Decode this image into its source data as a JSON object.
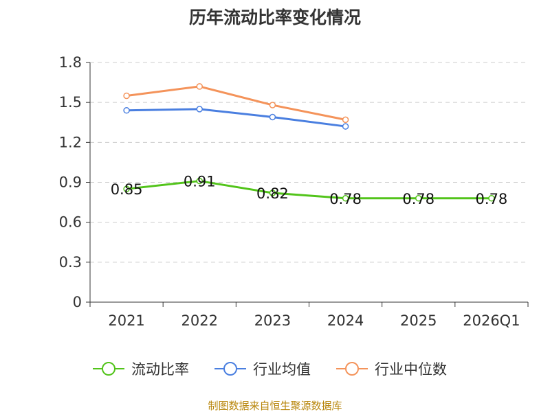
{
  "chart_data": {
    "type": "line",
    "title": "历年流动比率变化情况",
    "categories": [
      "2021",
      "2022",
      "2023",
      "2024",
      "2025",
      "2026Q1"
    ],
    "y_ticks": [
      "0",
      "0.3",
      "0.6",
      "0.9",
      "1.2",
      "1.5",
      "1.8"
    ],
    "ylim": [
      0,
      1.8
    ],
    "grid": true,
    "legend_position": "bottom",
    "series": [
      {
        "name": "流动比率",
        "color": "#52c41a",
        "values": [
          0.85,
          0.91,
          0.82,
          0.78,
          0.78,
          0.78
        ],
        "labels": [
          "0.85",
          "0.91",
          "0.82",
          "0.78",
          "0.78",
          "0.78"
        ]
      },
      {
        "name": "行业均值",
        "color": "#4a7fe0",
        "values": [
          1.44,
          1.45,
          1.39,
          1.32,
          null,
          null
        ]
      },
      {
        "name": "行业中位数",
        "color": "#f4935a",
        "values": [
          1.55,
          1.62,
          1.48,
          1.37,
          null,
          null
        ]
      }
    ],
    "source": "制图数据来自恒生聚源数据库"
  }
}
